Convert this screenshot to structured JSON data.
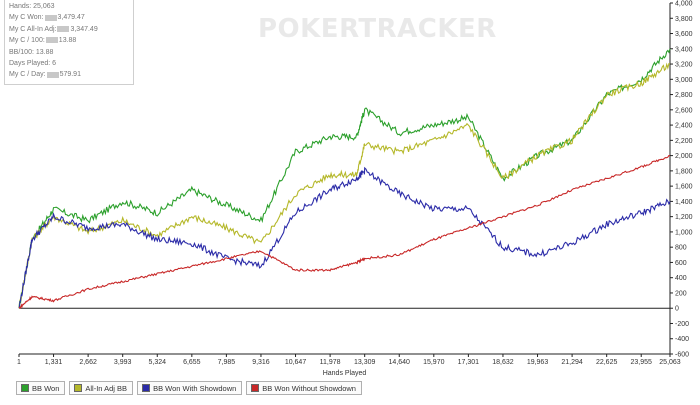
{
  "stats": {
    "hands": "Hands: 25,063",
    "won_label": "My C Won:",
    "won_value": "3,479.47",
    "allin_label": "My C All-In Adj:",
    "allin_value": "3,347.49",
    "per100_label": "My C / 100:",
    "per100_value": "13.88",
    "bb100": "BB/100: 13.88",
    "days": "Days Played: 6",
    "perday_label": "My C / Day:",
    "perday_value": "579.91"
  },
  "watermark": "POKERTRACKER",
  "chart_data": {
    "type": "line",
    "xlabel": "Hands Played",
    "ylabel": "",
    "xlim": [
      1,
      25063
    ],
    "ylim": [
      -600,
      4000
    ],
    "grid": false,
    "legend_position": "bottom",
    "x_ticks": [
      "1",
      "1,331",
      "2,662",
      "3,993",
      "5,324",
      "6,655",
      "7,985",
      "9,316",
      "10,647",
      "11,978",
      "13,309",
      "14,640",
      "15,970",
      "17,301",
      "18,632",
      "19,963",
      "21,294",
      "22,625",
      "23,955",
      "25,063"
    ],
    "y_ticks": [
      "-600",
      "-400",
      "-200",
      "0",
      "200",
      "400",
      "600",
      "800",
      "1,000",
      "1,200",
      "1,400",
      "1,600",
      "1,800",
      "2,000",
      "2,200",
      "2,400",
      "2,600",
      "2,800",
      "3,000",
      "3,200",
      "3,400",
      "3,600",
      "3,800",
      "4,000"
    ],
    "series": [
      {
        "name": "BB Won",
        "color": "#2ca02c",
        "x": [
          1,
          500,
          1331,
          2662,
          3993,
          5324,
          6655,
          7985,
          9316,
          10647,
          11978,
          13000,
          13309,
          14640,
          15970,
          17301,
          18632,
          19963,
          21294,
          22625,
          23955,
          25063
        ],
        "y": [
          0,
          900,
          1300,
          1150,
          1400,
          1250,
          1550,
          1350,
          1150,
          2050,
          2250,
          2250,
          2600,
          2300,
          2400,
          2500,
          1700,
          2000,
          2200,
          2800,
          3000,
          3400
        ]
      },
      {
        "name": "All-In Adj BB",
        "color": "#b5b82a",
        "x": [
          1,
          500,
          1331,
          2662,
          3993,
          5324,
          6655,
          7985,
          9316,
          10647,
          11978,
          13000,
          13309,
          14640,
          15970,
          17301,
          18632,
          19963,
          21294,
          22625,
          23955,
          25063
        ],
        "y": [
          0,
          900,
          1200,
          1000,
          1150,
          950,
          1200,
          1050,
          850,
          1500,
          1750,
          1750,
          2150,
          2050,
          2200,
          2400,
          1700,
          2000,
          2200,
          2800,
          2950,
          3200
        ]
      },
      {
        "name": "BB Won With Showdown",
        "color": "#2b2ba8",
        "x": [
          1,
          500,
          1331,
          2662,
          3993,
          5324,
          6655,
          7985,
          9316,
          10647,
          11978,
          13000,
          13309,
          14640,
          15970,
          17301,
          18632,
          19963,
          21294,
          22625,
          23955,
          25063
        ],
        "y": [
          0,
          900,
          1200,
          1050,
          1100,
          900,
          850,
          650,
          550,
          1250,
          1550,
          1700,
          1800,
          1500,
          1300,
          1300,
          800,
          700,
          850,
          1100,
          1250,
          1400
        ]
      },
      {
        "name": "BB Won Without Showdown",
        "color": "#c82828",
        "x": [
          1,
          500,
          1331,
          2662,
          3993,
          5324,
          6655,
          7985,
          9316,
          10647,
          11978,
          13000,
          13309,
          14640,
          15970,
          17301,
          18632,
          19963,
          21294,
          22625,
          23955,
          25063
        ],
        "y": [
          0,
          150,
          100,
          250,
          350,
          450,
          550,
          650,
          750,
          500,
          500,
          600,
          650,
          700,
          900,
          1050,
          1200,
          1350,
          1550,
          1700,
          1850,
          2000
        ]
      }
    ]
  }
}
